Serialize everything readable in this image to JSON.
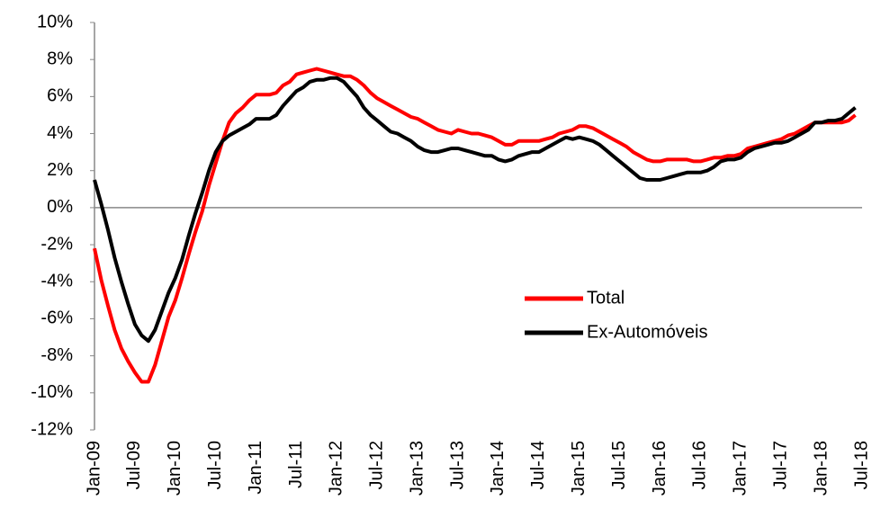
{
  "chart_data": {
    "type": "line",
    "categories": [
      "Jan-09",
      null,
      null,
      null,
      null,
      null,
      "Jul-09",
      null,
      null,
      null,
      null,
      null,
      "Jan-10",
      null,
      null,
      null,
      null,
      null,
      "Jul-10",
      null,
      null,
      null,
      null,
      null,
      "Jan-11",
      null,
      null,
      null,
      null,
      null,
      "Jul-11",
      null,
      null,
      null,
      null,
      null,
      "Jan-12",
      null,
      null,
      null,
      null,
      null,
      "Jul-12",
      null,
      null,
      null,
      null,
      null,
      "Jan-13",
      null,
      null,
      null,
      null,
      null,
      "Jul-13",
      null,
      null,
      null,
      null,
      null,
      "Jan-14",
      null,
      null,
      null,
      null,
      null,
      "Jul-14",
      null,
      null,
      null,
      null,
      null,
      "Jan-15",
      null,
      null,
      null,
      null,
      null,
      "Jul-15",
      null,
      null,
      null,
      null,
      null,
      "Jan-16",
      null,
      null,
      null,
      null,
      null,
      "Jul-16",
      null,
      null,
      null,
      null,
      null,
      "Jan-17",
      null,
      null,
      null,
      null,
      null,
      "Jul-17",
      null,
      null,
      null,
      null,
      null,
      "Jan-18",
      null,
      null,
      null,
      null,
      null,
      "Jul-18"
    ],
    "series": [
      {
        "name": "Total",
        "color": "#ff0000",
        "values": [
          -2.2,
          -3.9,
          -5.3,
          -6.6,
          -7.6,
          -8.3,
          -8.9,
          -9.4,
          -9.4,
          -8.5,
          -7.2,
          -5.9,
          -5.0,
          -3.8,
          -2.5,
          -1.3,
          -0.2,
          1.2,
          2.4,
          3.6,
          4.6,
          5.1,
          5.4,
          5.8,
          6.1,
          6.1,
          6.1,
          6.2,
          6.6,
          6.8,
          7.2,
          7.3,
          7.4,
          7.5,
          7.4,
          7.3,
          7.2,
          7.1,
          7.1,
          6.9,
          6.6,
          6.2,
          5.9,
          5.7,
          5.5,
          5.3,
          5.1,
          4.9,
          4.8,
          4.6,
          4.4,
          4.2,
          4.1,
          4.0,
          4.2,
          4.1,
          4.0,
          4.0,
          3.9,
          3.8,
          3.6,
          3.4,
          3.4,
          3.6,
          3.6,
          3.6,
          3.6,
          3.7,
          3.8,
          4.0,
          4.1,
          4.2,
          4.4,
          4.4,
          4.3,
          4.1,
          3.9,
          3.7,
          3.5,
          3.3,
          3.0,
          2.8,
          2.6,
          2.5,
          2.5,
          2.6,
          2.6,
          2.6,
          2.6,
          2.5,
          2.5,
          2.6,
          2.7,
          2.7,
          2.8,
          2.8,
          2.9,
          3.2,
          3.3,
          3.4,
          3.5,
          3.6,
          3.7,
          3.9,
          4.0,
          4.2,
          4.4,
          4.6,
          4.6,
          4.6,
          4.6,
          4.6,
          4.7,
          5.0,
          null
        ]
      },
      {
        "name": "Ex-Automóveis",
        "color": "#000000",
        "values": [
          1.5,
          0.2,
          -1.2,
          -2.7,
          -4.0,
          -5.2,
          -6.3,
          -6.9,
          -7.2,
          -6.6,
          -5.6,
          -4.6,
          -3.8,
          -2.8,
          -1.5,
          -0.3,
          0.8,
          2.0,
          3.0,
          3.6,
          3.9,
          4.1,
          4.3,
          4.5,
          4.8,
          4.8,
          4.8,
          5.0,
          5.5,
          5.9,
          6.3,
          6.5,
          6.8,
          6.9,
          6.9,
          7.0,
          7.0,
          6.8,
          6.4,
          6.0,
          5.4,
          5.0,
          4.7,
          4.4,
          4.1,
          4.0,
          3.8,
          3.6,
          3.3,
          3.1,
          3.0,
          3.0,
          3.1,
          3.2,
          3.2,
          3.1,
          3.0,
          2.9,
          2.8,
          2.8,
          2.6,
          2.5,
          2.6,
          2.8,
          2.9,
          3.0,
          3.0,
          3.2,
          3.4,
          3.6,
          3.8,
          3.7,
          3.8,
          3.7,
          3.6,
          3.4,
          3.1,
          2.8,
          2.5,
          2.2,
          1.9,
          1.6,
          1.5,
          1.5,
          1.5,
          1.6,
          1.7,
          1.8,
          1.9,
          1.9,
          1.9,
          2.0,
          2.2,
          2.5,
          2.6,
          2.6,
          2.7,
          3.0,
          3.2,
          3.3,
          3.4,
          3.5,
          3.5,
          3.6,
          3.8,
          4.0,
          4.2,
          4.6,
          4.6,
          4.7,
          4.7,
          4.8,
          5.1,
          5.4,
          null
        ]
      }
    ],
    "ylim": [
      -12,
      10
    ],
    "yticks": [
      {
        "value": -12,
        "label": "-12%"
      },
      {
        "value": -10,
        "label": "-10%"
      },
      {
        "value": -8,
        "label": "-8%"
      },
      {
        "value": -6,
        "label": "-6%"
      },
      {
        "value": -4,
        "label": "-4%"
      },
      {
        "value": -2,
        "label": "-2%"
      },
      {
        "value": 0,
        "label": "0%"
      },
      {
        "value": 2,
        "label": "2%"
      },
      {
        "value": 4,
        "label": "4%"
      },
      {
        "value": 6,
        "label": "6%"
      },
      {
        "value": 8,
        "label": "8%"
      },
      {
        "value": 10,
        "label": "10%"
      }
    ],
    "grid": false,
    "legend": "right"
  }
}
